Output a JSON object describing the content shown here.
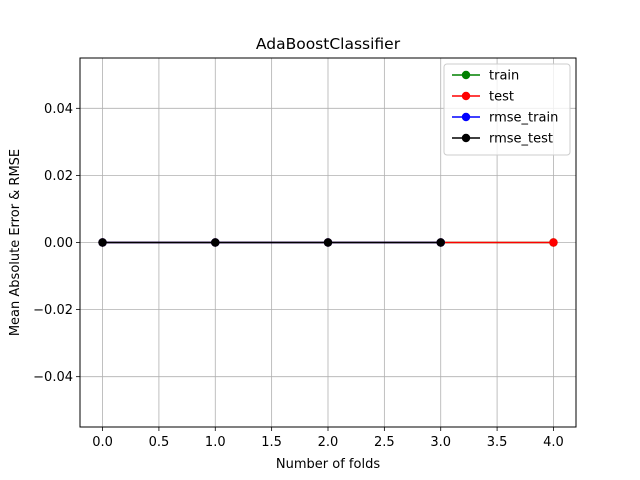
{
  "chart_data": {
    "type": "line",
    "title": "AdaBoostClassifier",
    "xlabel": "Number of folds",
    "ylabel": "Mean Absolute Error & RMSE",
    "xlim": [
      -0.2,
      4.2
    ],
    "ylim": [
      -0.055,
      0.055
    ],
    "xticks": [
      0.0,
      0.5,
      1.0,
      1.5,
      2.0,
      2.5,
      3.0,
      3.5,
      4.0
    ],
    "xtick_labels": [
      "0.0",
      "0.5",
      "1.0",
      "1.5",
      "2.0",
      "2.5",
      "3.0",
      "3.5",
      "4.0"
    ],
    "yticks": [
      -0.04,
      -0.02,
      0.0,
      0.02,
      0.04
    ],
    "ytick_labels": [
      "−0.04",
      "−0.02",
      "0.00",
      "0.02",
      "0.04"
    ],
    "grid": true,
    "legend_position": "top-right",
    "series": [
      {
        "name": "train",
        "color": "#008000",
        "x": [
          0,
          1,
          2,
          3,
          4
        ],
        "y": [
          0,
          0,
          0,
          0,
          0
        ]
      },
      {
        "name": "test",
        "color": "#ff0000",
        "x": [
          0,
          1,
          2,
          3,
          4
        ],
        "y": [
          0,
          0,
          0,
          0,
          0
        ]
      },
      {
        "name": "rmse_train",
        "color": "#0000ff",
        "x": [
          0,
          1,
          2,
          3
        ],
        "y": [
          0,
          0,
          0,
          0
        ]
      },
      {
        "name": "rmse_test",
        "color": "#000000",
        "x": [
          0,
          1,
          2,
          3
        ],
        "y": [
          0,
          0,
          0,
          0
        ]
      }
    ]
  }
}
